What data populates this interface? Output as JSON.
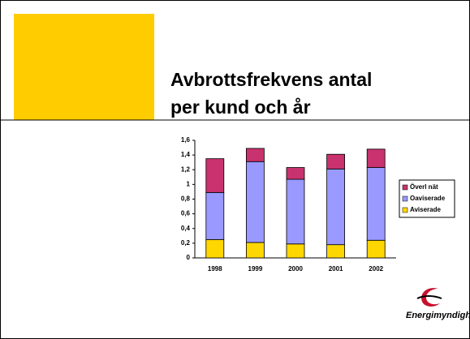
{
  "slide": {
    "title_lines": [
      "Avbrottsfrekvens antal",
      "per kund och år"
    ],
    "logo_text": "Energimyndigheten"
  },
  "chart_data": {
    "type": "stacked_bar",
    "categories": [
      "1998",
      "1999",
      "2000",
      "2001",
      "2002"
    ],
    "series": [
      {
        "name": "Aviserade",
        "color": "#ffd700",
        "values": [
          0.25,
          0.21,
          0.19,
          0.18,
          0.24
        ]
      },
      {
        "name": "Oaviserade",
        "color": "#9999ff",
        "values": [
          0.64,
          1.1,
          0.88,
          1.03,
          0.99
        ]
      },
      {
        "name": "Överl nät",
        "color": "#c8326e",
        "values": [
          0.46,
          0.18,
          0.16,
          0.2,
          0.25
        ]
      }
    ],
    "ylim": [
      0,
      1.6
    ],
    "yticks": [
      0,
      {
        "value": 0.2,
        "label": "0,2"
      },
      {
        "value": 0.4,
        "label": "0,4"
      },
      {
        "value": 0.6,
        "label": "0,6"
      },
      {
        "value": 0.8,
        "label": "0,8"
      },
      1,
      {
        "value": 1.2,
        "label": "1,2"
      },
      {
        "value": 1.4,
        "label": "1,4"
      },
      {
        "value": 1.6,
        "label": "1,6"
      }
    ],
    "grid": false,
    "legend": "right"
  }
}
